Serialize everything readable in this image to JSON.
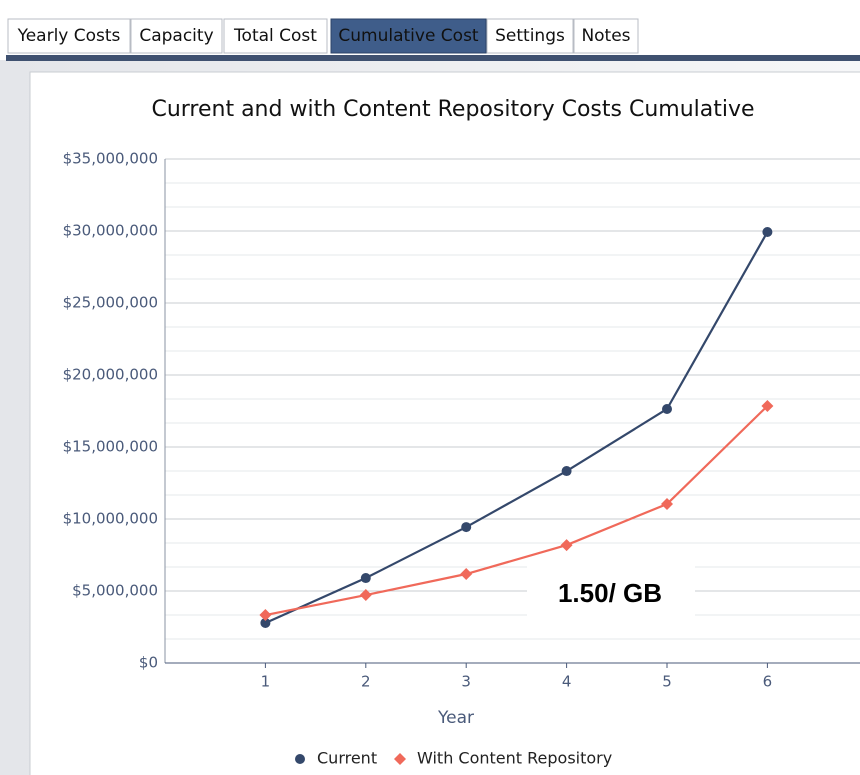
{
  "tabs": [
    "Yearly Costs",
    "Capacity",
    "Total Cost",
    "Cumulative Cost",
    "Settings",
    "Notes"
  ],
  "active_tab": 3,
  "chart_data": {
    "type": "line",
    "title": "Current and with Content Repository Costs Cumulative",
    "x_label": "Year",
    "x": [
      1,
      2,
      3,
      4,
      5,
      6
    ],
    "xlim": [
      0,
      7
    ],
    "xticks": [
      1,
      2,
      3,
      4,
      5,
      6
    ],
    "ylim": [
      0,
      35000000
    ],
    "yticks": [
      {
        "value": 0,
        "label": "$0"
      },
      {
        "value": 5000000,
        "label": "$5,000,000"
      },
      {
        "value": 10000000,
        "label": "$10,000,000"
      },
      {
        "value": 15000000,
        "label": "$15,000,000"
      },
      {
        "value": 20000000,
        "label": "$20,000,000"
      },
      {
        "value": 25000000,
        "label": "$25,000,000"
      },
      {
        "value": 30000000,
        "label": "$30,000,000"
      },
      {
        "value": 35000000,
        "label": "$35,000,000"
      }
    ],
    "grid": true,
    "legend": "bottom",
    "series": [
      {
        "name": "Current",
        "color": "#34486b",
        "marker": "circle",
        "values": [
          2780000,
          5900000,
          9440000,
          13330000,
          17640000,
          29930000
        ]
      },
      {
        "name": "With Content Repository",
        "color": "#f0695a",
        "marker": "diamond",
        "values": [
          3330000,
          4720000,
          6180000,
          8190000,
          11040000,
          17850000
        ]
      }
    ],
    "annotation": "1.50/ GB"
  }
}
